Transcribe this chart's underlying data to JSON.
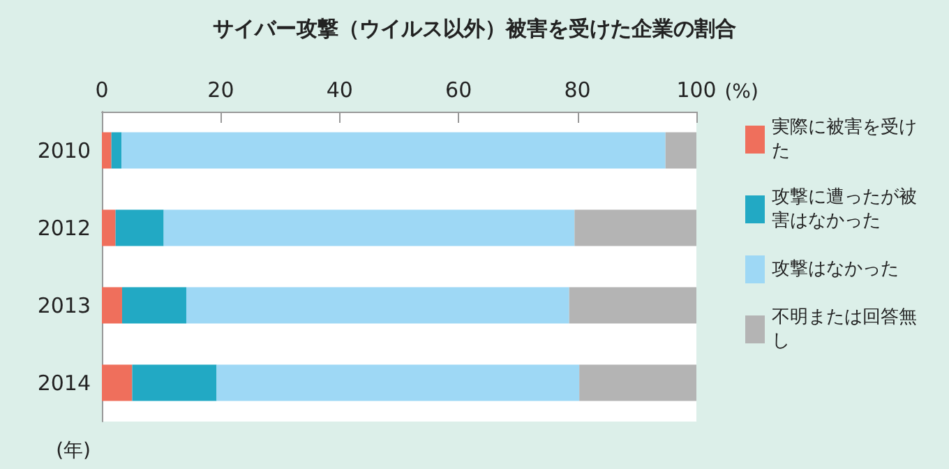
{
  "chart_data": {
    "type": "bar",
    "orientation": "horizontal",
    "stacked": true,
    "title": "サイバー攻撃（ウイルス以外）被害を受けた企業の割合",
    "xlabel": "(%)",
    "ylabel": "(年)",
    "categories": [
      "2010",
      "2012",
      "2013",
      "2014"
    ],
    "series": [
      {
        "name": "実際に被害を受けた",
        "color": "#ef6f5c",
        "values": [
          1.6,
          2.3,
          3.4,
          5.1
        ]
      },
      {
        "name": "攻撃に遭ったが被害はなかった",
        "color": "#22a9c4",
        "values": [
          1.7,
          8.1,
          10.8,
          14.2
        ]
      },
      {
        "name": "攻撃はなかった",
        "color": "#9ed8f5",
        "values": [
          91.5,
          69.1,
          64.4,
          61.0
        ]
      },
      {
        "name": "不明または回答無し",
        "color": "#b4b4b4",
        "values": [
          5.2,
          20.5,
          21.4,
          19.7
        ]
      }
    ],
    "xlim": [
      0,
      100
    ],
    "xticks": [
      0,
      20,
      40,
      60,
      80,
      100
    ],
    "grid": false,
    "legend": "right"
  }
}
